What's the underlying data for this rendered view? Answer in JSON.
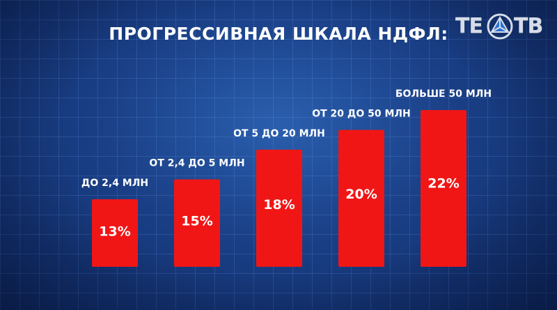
{
  "title": "ПРОГРЕССИВНАЯ ШКАЛА НДФЛ:",
  "logo": {
    "left_text": "ТЕ",
    "right_text": "ТВ",
    "icon": "triangle-emblem-icon"
  },
  "colors": {
    "bar": "#f01616",
    "text": "#ffffff"
  },
  "chart_data": {
    "type": "bar",
    "title": "ПРОГРЕССИВНАЯ ШКАЛА НДФЛ:",
    "categories": [
      "ДО 2,4 МЛН",
      "ОТ 2,4 ДО 5 МЛН",
      "ОТ 5 ДО 20 МЛН",
      "ОТ 20 ДО 50 МЛН",
      "БОЛЬШЕ 50 МЛН"
    ],
    "values": [
      13,
      15,
      18,
      20,
      22
    ],
    "data_labels": [
      "13%",
      "15%",
      "18%",
      "20%",
      "22%"
    ],
    "xlabel": "",
    "ylabel": "",
    "grid": false,
    "legend": "none"
  }
}
